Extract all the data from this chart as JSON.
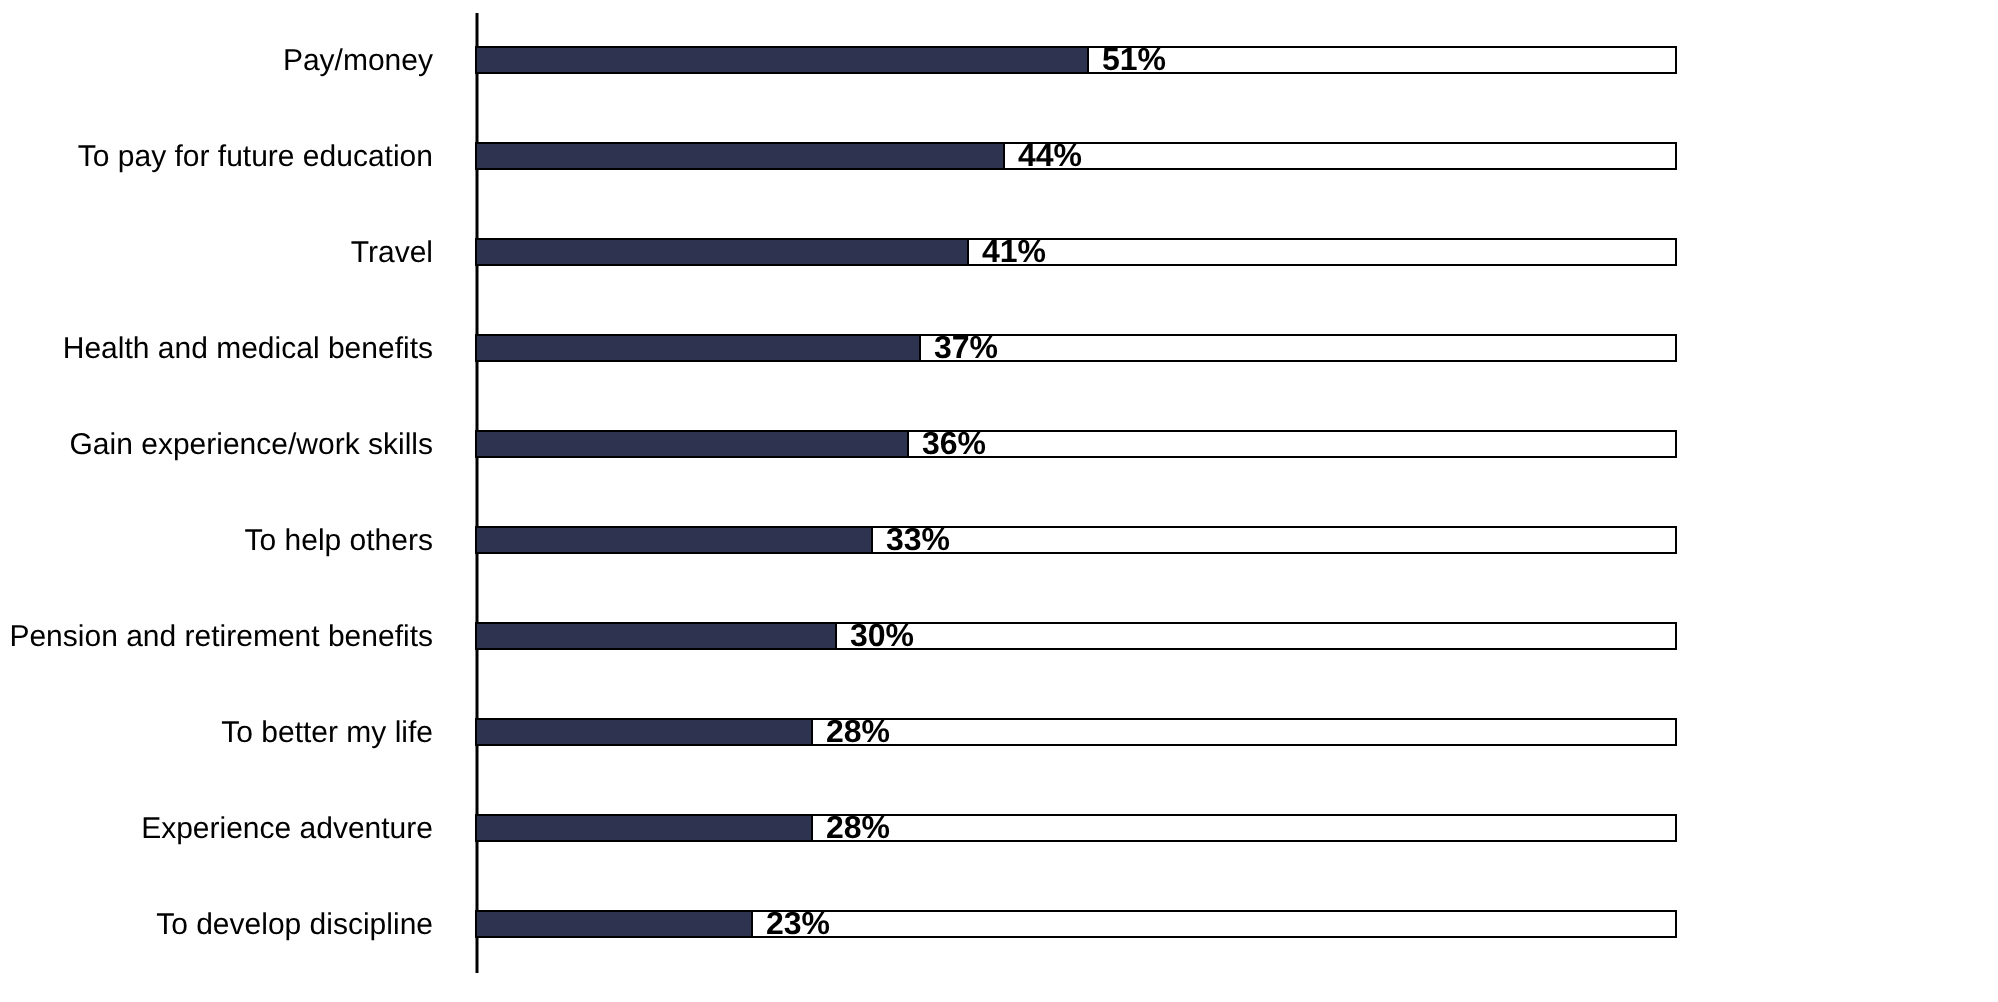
{
  "chart_data": {
    "type": "bar",
    "orientation": "horizontal",
    "stacked": true,
    "xlim": [
      0,
      100
    ],
    "categories": [
      "Pay/money",
      "To pay for future education",
      "Travel",
      "Health and medical benefits",
      "Gain experience/work skills",
      "To help others",
      "Pension and retirement benefits",
      "To better my life",
      "Experience adventure",
      "To develop discipline"
    ],
    "series": [
      {
        "color": "#2e3350",
        "values": [
          51,
          44,
          41,
          37,
          36,
          33,
          30,
          28,
          28,
          23
        ],
        "value_labels": [
          "51%",
          "44%",
          "41%",
          "37%",
          "36%",
          "33%",
          "30%",
          "28%",
          "28%",
          "23%"
        ]
      },
      {
        "color": "#ffffff",
        "values": [
          49,
          56,
          59,
          63,
          64,
          67,
          70,
          72,
          72,
          77
        ]
      }
    ]
  }
}
